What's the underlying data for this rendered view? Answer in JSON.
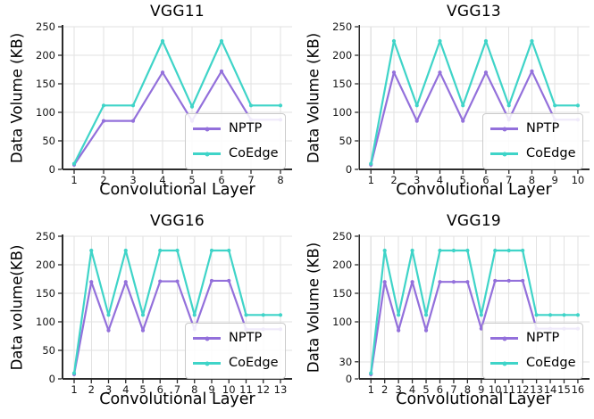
{
  "figure": {
    "background": "#ffffff",
    "grid_color": "#e2e2e2",
    "axis_color": "#2b2b2b",
    "tick_label_color": "#151515",
    "layout": "2x2-grid"
  },
  "chart_data": [
    {
      "type": "line",
      "title": "VGG11",
      "xlabel": "Convolutional Layer",
      "ylabel": "Data Volume (KB)",
      "x": [
        1,
        2,
        3,
        4,
        5,
        6,
        7,
        8
      ],
      "xticks": [
        1,
        2,
        3,
        4,
        5,
        6,
        7,
        8
      ],
      "yticks": [
        0,
        50,
        100,
        150,
        200,
        250
      ],
      "ylim": [
        0,
        250
      ],
      "grid": true,
      "legend_position": "lower right",
      "series": [
        {
          "name": "NPTP",
          "color": "#9370db",
          "values": [
            8,
            85,
            85,
            170,
            85,
            172,
            87,
            87
          ]
        },
        {
          "name": "CoEdge",
          "color": "#3fd4c8",
          "values": [
            10,
            112,
            112,
            225,
            110,
            225,
            112,
            112
          ]
        }
      ]
    },
    {
      "type": "line",
      "title": "VGG13",
      "xlabel": "Convolutional Layer",
      "ylabel": "Data Volume (KB)",
      "x": [
        1,
        2,
        3,
        4,
        5,
        6,
        7,
        8,
        9,
        10
      ],
      "xticks": [
        1,
        2,
        3,
        4,
        5,
        6,
        7,
        8,
        9,
        10
      ],
      "yticks": [
        0,
        50,
        100,
        150,
        200,
        250
      ],
      "ylim": [
        0,
        250
      ],
      "grid": true,
      "legend_position": "lower right",
      "series": [
        {
          "name": "NPTP",
          "color": "#9370db",
          "values": [
            8,
            170,
            85,
            170,
            85,
            170,
            87,
            172,
            87,
            87
          ]
        },
        {
          "name": "CoEdge",
          "color": "#3fd4c8",
          "values": [
            10,
            225,
            112,
            225,
            112,
            225,
            112,
            225,
            112,
            112
          ]
        }
      ]
    },
    {
      "type": "line",
      "title": "VGG16",
      "xlabel": "Convolutional Layer",
      "ylabel": "Data volume(KB)",
      "x": [
        1,
        2,
        3,
        4,
        5,
        6,
        7,
        8,
        9,
        10,
        11,
        12,
        13
      ],
      "xticks": [
        1,
        2,
        3,
        4,
        5,
        6,
        7,
        8,
        9,
        10,
        11,
        12,
        13
      ],
      "yticks": [
        0,
        50,
        100,
        150,
        200,
        250
      ],
      "ylim": [
        0,
        250
      ],
      "grid": true,
      "legend_position": "lower right",
      "series": [
        {
          "name": "NPTP",
          "color": "#9370db",
          "values": [
            8,
            170,
            85,
            170,
            85,
            171,
            171,
            87,
            172,
            172,
            87,
            87,
            87
          ]
        },
        {
          "name": "CoEdge",
          "color": "#3fd4c8",
          "values": [
            10,
            225,
            112,
            225,
            112,
            225,
            225,
            112,
            225,
            225,
            112,
            112,
            112
          ]
        }
      ]
    },
    {
      "type": "line",
      "title": "VGG19",
      "xlabel": "Convolutional Layer",
      "ylabel": "Data Volume (KB)",
      "x": [
        1,
        2,
        3,
        4,
        5,
        6,
        7,
        8,
        9,
        10,
        11,
        12,
        13,
        14,
        15,
        16
      ],
      "xticks": [
        1,
        2,
        3,
        4,
        5,
        6,
        7,
        8,
        9,
        10,
        11,
        12,
        13,
        14,
        15,
        16
      ],
      "yticks": [
        0,
        30,
        100,
        150,
        200,
        250
      ],
      "ylim": [
        0,
        250
      ],
      "grid": true,
      "legend_position": "lower right",
      "series": [
        {
          "name": "NPTP",
          "color": "#9370db",
          "values": [
            8,
            170,
            85,
            170,
            85,
            170,
            170,
            170,
            88,
            172,
            172,
            172,
            88,
            88,
            88,
            88
          ]
        },
        {
          "name": "CoEdge",
          "color": "#3fd4c8",
          "values": [
            10,
            225,
            112,
            225,
            112,
            225,
            225,
            225,
            112,
            225,
            225,
            225,
            112,
            112,
            112,
            112
          ]
        }
      ]
    }
  ]
}
